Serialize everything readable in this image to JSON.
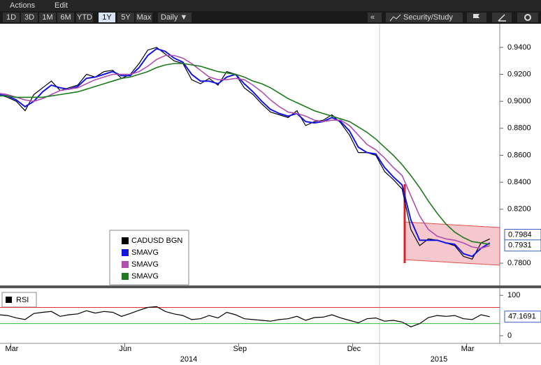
{
  "toolbar": {
    "menu": [
      "Actions",
      "Edit"
    ],
    "ranges": [
      "1D",
      "3D",
      "1M",
      "6M",
      "YTD",
      "1Y",
      "5Y",
      "Max"
    ],
    "period": "Daily ▼",
    "collapse": "«",
    "study": "Security/Study"
  },
  "chart_data": [
    {
      "type": "line",
      "categories": [
        null,
        null,
        "Mar",
        null,
        null,
        null,
        null,
        null,
        null,
        null,
        null,
        null,
        null,
        null,
        null,
        "Jun",
        null,
        null,
        null,
        null,
        null,
        null,
        null,
        null,
        null,
        null,
        null,
        null,
        "Sep",
        null,
        null,
        null,
        null,
        null,
        null,
        null,
        null,
        null,
        null,
        null,
        null,
        "Dec",
        null,
        null,
        null,
        null,
        null,
        null,
        null,
        null,
        null,
        null,
        null,
        null,
        "Mar",
        null,
        null
      ],
      "year_labels": [
        "2014",
        "2015"
      ],
      "ylim": [
        0.764,
        0.957
      ],
      "yticks": [
        {
          "value": 0.94,
          "label": "0.9400"
        },
        {
          "value": 0.92,
          "label": "0.9200"
        },
        {
          "value": 0.9,
          "label": "0.9000"
        },
        {
          "value": 0.88,
          "label": "0.8800"
        },
        {
          "value": 0.86,
          "label": "0.8600"
        },
        {
          "value": 0.84,
          "label": "0.8400"
        },
        {
          "value": 0.82,
          "label": "0.8200"
        },
        {
          "value": 0.78,
          "label": "0.7800"
        }
      ],
      "last_labels": [
        0.7984,
        0.7931
      ],
      "series": [
        {
          "name": "CADUSD BGN",
          "color": "#000000",
          "values": [
            0.905,
            0.903,
            0.9,
            0.893,
            0.905,
            0.91,
            0.915,
            0.908,
            0.91,
            0.912,
            0.92,
            0.918,
            0.922,
            0.923,
            0.917,
            0.92,
            0.928,
            0.938,
            0.94,
            0.935,
            0.93,
            0.928,
            0.916,
            0.913,
            0.917,
            0.912,
            0.922,
            0.92,
            0.91,
            0.905,
            0.898,
            0.892,
            0.89,
            0.888,
            0.893,
            0.882,
            0.885,
            0.886,
            0.89,
            0.884,
            0.875,
            0.862,
            0.862,
            0.86,
            0.848,
            0.842,
            0.835,
            0.805,
            0.793,
            0.798,
            0.797,
            0.795,
            0.793,
            0.785,
            0.783,
            0.795,
            0.798
          ]
        },
        {
          "name": "SMAVG",
          "color": "#1515e0",
          "values": [
            0.905,
            0.904,
            0.901,
            0.896,
            0.9,
            0.907,
            0.912,
            0.91,
            0.909,
            0.911,
            0.917,
            0.918,
            0.92,
            0.922,
            0.919,
            0.919,
            0.925,
            0.934,
            0.939,
            0.937,
            0.932,
            0.929,
            0.92,
            0.915,
            0.915,
            0.913,
            0.918,
            0.92,
            0.913,
            0.907,
            0.9,
            0.894,
            0.891,
            0.889,
            0.891,
            0.885,
            0.884,
            0.885,
            0.888,
            0.885,
            0.878,
            0.866,
            0.862,
            0.861,
            0.851,
            0.844,
            0.838,
            0.812,
            0.797,
            0.797,
            0.797,
            0.795,
            0.794,
            0.787,
            0.785,
            0.791,
            0.795
          ]
        },
        {
          "name": "SMAVG",
          "color": "#b04fb0",
          "values": [
            0.906,
            0.905,
            0.903,
            0.901,
            0.9,
            0.902,
            0.905,
            0.908,
            0.909,
            0.91,
            0.913,
            0.916,
            0.918,
            0.92,
            0.92,
            0.92,
            0.922,
            0.926,
            0.931,
            0.934,
            0.934,
            0.932,
            0.928,
            0.923,
            0.918,
            0.916,
            0.916,
            0.917,
            0.916,
            0.912,
            0.907,
            0.901,
            0.896,
            0.892,
            0.891,
            0.889,
            0.886,
            0.885,
            0.886,
            0.886,
            0.882,
            0.875,
            0.868,
            0.864,
            0.858,
            0.851,
            0.845,
            0.83,
            0.815,
            0.805,
            0.8,
            0.798,
            0.797,
            0.795,
            0.792,
            0.791,
            0.793
          ]
        },
        {
          "name": "SMAVG",
          "color": "#1e7a1e",
          "values": [
            0.904,
            0.904,
            0.903,
            0.903,
            0.903,
            0.903,
            0.904,
            0.905,
            0.906,
            0.907,
            0.909,
            0.911,
            0.913,
            0.915,
            0.917,
            0.918,
            0.92,
            0.922,
            0.925,
            0.927,
            0.928,
            0.928,
            0.927,
            0.926,
            0.924,
            0.922,
            0.921,
            0.92,
            0.918,
            0.915,
            0.913,
            0.91,
            0.906,
            0.902,
            0.899,
            0.896,
            0.893,
            0.891,
            0.889,
            0.887,
            0.885,
            0.881,
            0.877,
            0.872,
            0.866,
            0.86,
            0.853,
            0.845,
            0.836,
            0.826,
            0.817,
            0.809,
            0.803,
            0.799,
            0.796,
            0.795,
            0.794
          ]
        }
      ]
    },
    {
      "type": "line",
      "ylim": [
        -19,
        109
      ],
      "yticks": [
        100,
        0
      ],
      "levels": [
        70,
        30
      ],
      "last_labels": [
        47.1691
      ],
      "series": [
        {
          "name": "RSI",
          "color": "#000000",
          "values": [
            52,
            50,
            44,
            40,
            55,
            58,
            60,
            48,
            52,
            54,
            62,
            56,
            60,
            58,
            48,
            55,
            63,
            70,
            72,
            60,
            54,
            50,
            40,
            42,
            50,
            44,
            58,
            52,
            42,
            40,
            38,
            36,
            40,
            42,
            48,
            38,
            45,
            46,
            52,
            44,
            38,
            32,
            42,
            44,
            36,
            38,
            34,
            22,
            30,
            45,
            50,
            48,
            50,
            42,
            40,
            52,
            47
          ]
        }
      ]
    }
  ]
}
